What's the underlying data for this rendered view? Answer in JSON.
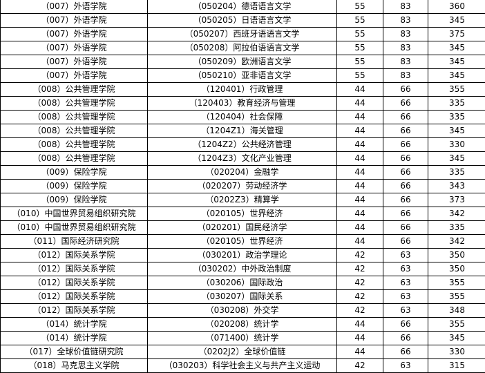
{
  "rows": [
    {
      "college": "（007）外语学院",
      "major": "（050204）德语语言文学",
      "single_100": "55",
      "single_over100": "83",
      "total": "360"
    },
    {
      "college": "（007）外语学院",
      "major": "（050205）日语语言文学",
      "single_100": "55",
      "single_over100": "83",
      "total": "345"
    },
    {
      "college": "（007）外语学院",
      "major": "（050207）西班牙语语言文学",
      "single_100": "55",
      "single_over100": "83",
      "total": "375"
    },
    {
      "college": "（007）外语学院",
      "major": "（050208）阿拉伯语语言文学",
      "single_100": "55",
      "single_over100": "83",
      "total": "345"
    },
    {
      "college": "（007）外语学院",
      "major": "（050209）欧洲语言文学",
      "single_100": "55",
      "single_over100": "83",
      "total": "345"
    },
    {
      "college": "（007）外语学院",
      "major": "（050210）亚非语言文学",
      "single_100": "55",
      "single_over100": "83",
      "total": "345"
    },
    {
      "college": "（008）公共管理学院",
      "major": "（120401）行政管理",
      "single_100": "44",
      "single_over100": "66",
      "total": "355"
    },
    {
      "college": "（008）公共管理学院",
      "major": "（120403）教育经济与管理",
      "single_100": "44",
      "single_over100": "66",
      "total": "335"
    },
    {
      "college": "（008）公共管理学院",
      "major": "（120404）社会保障",
      "single_100": "44",
      "single_over100": "66",
      "total": "335"
    },
    {
      "college": "（008）公共管理学院",
      "major": "（1204Z1）海关管理",
      "single_100": "44",
      "single_over100": "66",
      "total": "345"
    },
    {
      "college": "（008）公共管理学院",
      "major": "（1204Z2）公共经济管理",
      "single_100": "44",
      "single_over100": "66",
      "total": "330"
    },
    {
      "college": "（008）公共管理学院",
      "major": "（1204Z3）文化产业管理",
      "single_100": "44",
      "single_over100": "66",
      "total": "345"
    },
    {
      "college": "（009）保险学院",
      "major": "（020204）金融学",
      "single_100": "44",
      "single_over100": "66",
      "total": "335"
    },
    {
      "college": "（009）保险学院",
      "major": "（020207）劳动经济学",
      "single_100": "44",
      "single_over100": "66",
      "total": "343"
    },
    {
      "college": "（009）保险学院",
      "major": "（0202Z3）精算学",
      "single_100": "44",
      "single_over100": "66",
      "total": "373"
    },
    {
      "college": "（010）中国世界贸易组织研究院",
      "major": "（020105）世界经济",
      "single_100": "44",
      "single_over100": "66",
      "total": "342"
    },
    {
      "college": "（010）中国世界贸易组织研究院",
      "major": "（020201）国民经济学",
      "single_100": "44",
      "single_over100": "66",
      "total": "335"
    },
    {
      "college": "（011）国际经济研究院",
      "major": "（020105）世界经济",
      "single_100": "44",
      "single_over100": "66",
      "total": "342"
    },
    {
      "college": "（012）国际关系学院",
      "major": "（030201）政治学理论",
      "single_100": "42",
      "single_over100": "63",
      "total": "350"
    },
    {
      "college": "（012）国际关系学院",
      "major": "（030202）中外政治制度",
      "single_100": "42",
      "single_over100": "63",
      "total": "350"
    },
    {
      "college": "（012）国际关系学院",
      "major": "（030206）国际政治",
      "single_100": "42",
      "single_over100": "63",
      "total": "355"
    },
    {
      "college": "（012）国际关系学院",
      "major": "（030207）国际关系",
      "single_100": "42",
      "single_over100": "63",
      "total": "355"
    },
    {
      "college": "（012）国际关系学院",
      "major": "（030208）外交学",
      "single_100": "42",
      "single_over100": "63",
      "total": "348"
    },
    {
      "college": "（014）统计学院",
      "major": "（020208）统计学",
      "single_100": "44",
      "single_over100": "66",
      "total": "355"
    },
    {
      "college": "（014）统计学院",
      "major": "（071400）统计学",
      "single_100": "44",
      "single_over100": "66",
      "total": "345"
    },
    {
      "college": "（017）全球价值链研究院",
      "major": "（0202J2）全球价值链",
      "single_100": "44",
      "single_over100": "66",
      "total": "330"
    },
    {
      "college": "（018）马克思主义学院",
      "major": "（030203）科学社会主义与共产主义运动",
      "single_100": "42",
      "single_over100": "63",
      "total": "315"
    }
  ]
}
